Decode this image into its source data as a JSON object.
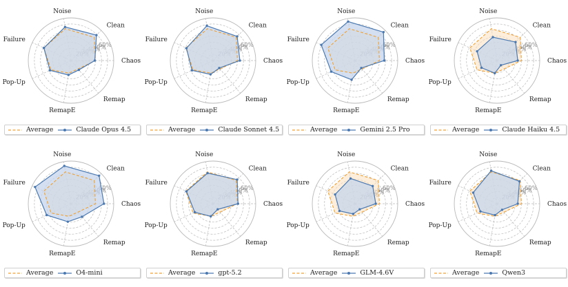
{
  "colors": {
    "average": "#f0a030",
    "average_fill": "#fbe0bf",
    "model": "#4a78b0",
    "model_fill": "#c5d6ec",
    "grid": "#b8b8b8",
    "tick": "#909090"
  },
  "legend": {
    "average_label": "Average"
  },
  "chart_data": [
    {
      "type": "radar",
      "axes": [
        "Clean",
        "Chaos",
        "Remap",
        "RemapE",
        "Pop-Up",
        "Failure",
        "Noise"
      ],
      "rticks": [
        "20%",
        "30%",
        "40%",
        "50%",
        "60%"
      ],
      "rlim": [
        0,
        70
      ],
      "series": [
        {
          "name": "Average",
          "values": [
            54,
            40,
            18,
            21,
            36,
            49,
            53
          ]
        },
        {
          "name": "Claude Opus 4.5",
          "values": [
            59,
            39,
            20,
            24,
            38,
            49,
            56
          ]
        }
      ]
    },
    {
      "type": "radar",
      "axes": [
        "Clean",
        "Chaos",
        "Remap",
        "RemapE",
        "Pop-Up",
        "Failure",
        "Noise"
      ],
      "rticks": [
        "20%",
        "30%",
        "40%",
        "50%",
        "60%"
      ],
      "rlim": [
        0,
        70
      ],
      "series": [
        {
          "name": "Average",
          "values": [
            54,
            40,
            18,
            21,
            36,
            49,
            53
          ]
        },
        {
          "name": "Claude Sonnet 4.5",
          "values": [
            56,
            44,
            16,
            23,
            38,
            48,
            58
          ]
        }
      ]
    },
    {
      "type": "radar",
      "axes": [
        "Clean",
        "Chaos",
        "Remap",
        "RemapE",
        "Pop-Up",
        "Failure",
        "Noise"
      ],
      "rticks": [
        "20%",
        "30%",
        "40%",
        "50%",
        "60%"
      ],
      "rlim": [
        0,
        70
      ],
      "series": [
        {
          "name": "Average",
          "values": [
            54,
            40,
            18,
            21,
            36,
            49,
            53
          ]
        },
        {
          "name": "Gemini 2.5 Pro",
          "values": [
            66,
            48,
            16,
            32,
            43,
            61,
            65
          ]
        }
      ]
    },
    {
      "type": "radar",
      "axes": [
        "Clean",
        "Chaos",
        "Remap",
        "RemapE",
        "Pop-Up",
        "Failure",
        "Noise"
      ],
      "rticks": [
        "20%",
        "30%",
        "40%",
        "50%",
        "60%"
      ],
      "rlim": [
        0,
        70
      ],
      "series": [
        {
          "name": "Average",
          "values": [
            54,
            40,
            18,
            21,
            36,
            49,
            53
          ]
        },
        {
          "name": "Claude Haiku 4.5",
          "values": [
            43,
            34,
            10,
            21,
            28,
            36,
            39
          ]
        }
      ]
    },
    {
      "type": "radar",
      "axes": [
        "Clean",
        "Chaos",
        "Remap",
        "RemapE",
        "Pop-Up",
        "Failure",
        "Noise"
      ],
      "rticks": [
        "20%",
        "30%",
        "40%",
        "50%",
        "60%"
      ],
      "rlim": [
        0,
        70
      ],
      "series": [
        {
          "name": "Average",
          "values": [
            54,
            40,
            18,
            21,
            36,
            49,
            53
          ]
        },
        {
          "name": "O4-mini",
          "values": [
            65,
            54,
            28,
            30,
            44,
            65,
            63
          ]
        }
      ]
    },
    {
      "type": "radar",
      "axes": [
        "Clean",
        "Chaos",
        "Remap",
        "RemapE",
        "Pop-Up",
        "Failure",
        "Noise"
      ],
      "rticks": [
        "20%",
        "30%",
        "40%",
        "50%",
        "60%"
      ],
      "rlim": [
        0,
        70
      ],
      "series": [
        {
          "name": "Average",
          "values": [
            54,
            40,
            18,
            21,
            36,
            49,
            53
          ]
        },
        {
          "name": "gpt-5.2",
          "values": [
            56,
            41,
            12,
            21,
            33,
            48,
            51
          ]
        }
      ]
    },
    {
      "type": "radar",
      "axes": [
        "Clean",
        "Chaos",
        "Remap",
        "RemapE",
        "Pop-Up",
        "Failure",
        "Noise"
      ],
      "rticks": [
        "20%",
        "30%",
        "40%",
        "50%",
        "60%"
      ],
      "rlim": [
        0,
        70
      ],
      "series": [
        {
          "name": "Average",
          "values": [
            54,
            40,
            18,
            21,
            36,
            49,
            53
          ]
        },
        {
          "name": "GLM-4.6V",
          "values": [
            41,
            34,
            12,
            17,
            28,
            36,
            42
          ]
        }
      ]
    },
    {
      "type": "radar",
      "axes": [
        "Clean",
        "Chaos",
        "Remap",
        "RemapE",
        "Pop-Up",
        "Failure",
        "Noise"
      ],
      "rticks": [
        "20%",
        "30%",
        "40%",
        "50%",
        "60%"
      ],
      "rlim": [
        0,
        70
      ],
      "series": [
        {
          "name": "Average",
          "values": [
            54,
            40,
            18,
            21,
            36,
            49,
            53
          ]
        },
        {
          "name": "Qwen3",
          "values": [
            52,
            34,
            13,
            19,
            30,
            43,
            55
          ]
        }
      ]
    }
  ]
}
